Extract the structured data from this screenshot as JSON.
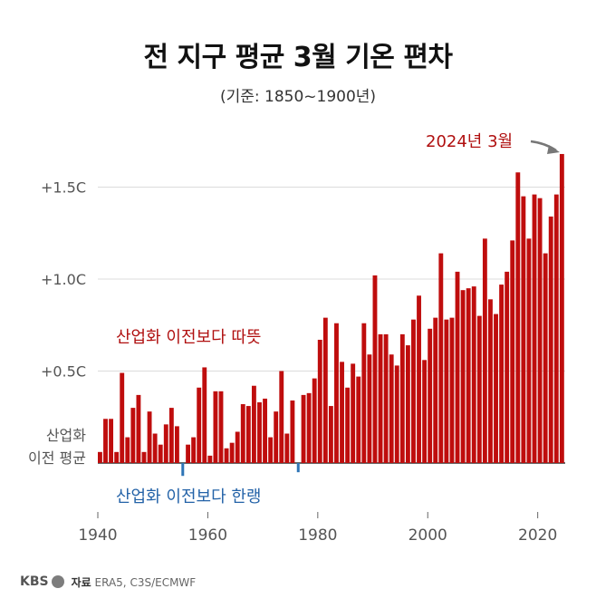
{
  "title": "전 지구 평균 3월 기온 편차",
  "subtitle": "(기준: 1850~1900년)",
  "footer": {
    "logo": "KBS",
    "source_label": "자료",
    "source_text": "ERA5, C3S/ECMWF"
  },
  "colors": {
    "warm": "#bf0d0d",
    "cold": "#2e75b6",
    "warm_text": "#b01010",
    "cold_text": "#2463a8",
    "grid": "#dcdcdc",
    "axis_text": "#555555"
  },
  "chart_data": {
    "type": "bar",
    "title": "전 지구 평균 3월 기온 편차",
    "subtitle": "(기준: 1850~1900년)",
    "xlabel": "",
    "ylabel": "",
    "ylim": [
      -0.1,
      1.72
    ],
    "xlim": [
      1940,
      2024
    ],
    "x_ticks": [
      1940,
      1960,
      1980,
      2000,
      2020
    ],
    "y_ticks": [
      {
        "value": 0.5,
        "label": "+0.5C"
      },
      {
        "value": 1.0,
        "label": "+1.0C"
      },
      {
        "value": 1.5,
        "label": "+1.5C"
      }
    ],
    "baseline_label": [
      "산업화",
      "이전 평균"
    ],
    "annotations": {
      "warm": "산업화 이전보다 따뜻",
      "cold": "산업화 이전보다 한랭",
      "latest": "2024년 3월"
    },
    "years": [
      1940,
      1941,
      1942,
      1943,
      1944,
      1945,
      1946,
      1947,
      1948,
      1949,
      1950,
      1951,
      1952,
      1953,
      1954,
      1955,
      1956,
      1957,
      1958,
      1959,
      1960,
      1961,
      1962,
      1963,
      1964,
      1965,
      1966,
      1967,
      1968,
      1969,
      1970,
      1971,
      1972,
      1973,
      1974,
      1975,
      1976,
      1977,
      1978,
      1979,
      1980,
      1981,
      1982,
      1983,
      1984,
      1985,
      1986,
      1987,
      1988,
      1989,
      1990,
      1991,
      1992,
      1993,
      1994,
      1995,
      1996,
      1997,
      1998,
      1999,
      2000,
      2001,
      2002,
      2003,
      2004,
      2005,
      2006,
      2007,
      2008,
      2009,
      2010,
      2011,
      2012,
      2013,
      2014,
      2015,
      2016,
      2017,
      2018,
      2019,
      2020,
      2021,
      2022,
      2023,
      2024
    ],
    "values": [
      0.06,
      0.24,
      0.24,
      0.06,
      0.49,
      0.14,
      0.3,
      0.37,
      0.06,
      0.28,
      0.16,
      0.1,
      0.21,
      0.3,
      0.2,
      -0.07,
      0.1,
      0.14,
      0.41,
      0.52,
      0.04,
      0.39,
      0.39,
      0.08,
      0.11,
      0.17,
      0.32,
      0.31,
      0.42,
      0.33,
      0.35,
      0.14,
      0.28,
      0.5,
      0.16,
      0.34,
      -0.05,
      0.37,
      0.38,
      0.46,
      0.67,
      0.79,
      0.31,
      0.76,
      0.55,
      0.41,
      0.54,
      0.47,
      0.76,
      0.59,
      1.02,
      0.7,
      0.7,
      0.59,
      0.53,
      0.7,
      0.64,
      0.78,
      0.91,
      0.56,
      0.73,
      0.79,
      1.14,
      0.78,
      0.79,
      1.04,
      0.94,
      0.95,
      0.96,
      0.8,
      1.22,
      0.89,
      0.81,
      0.97,
      1.04,
      1.21,
      1.58,
      1.45,
      1.22,
      1.46,
      1.44,
      1.14,
      1.34,
      1.46,
      1.68
    ]
  }
}
